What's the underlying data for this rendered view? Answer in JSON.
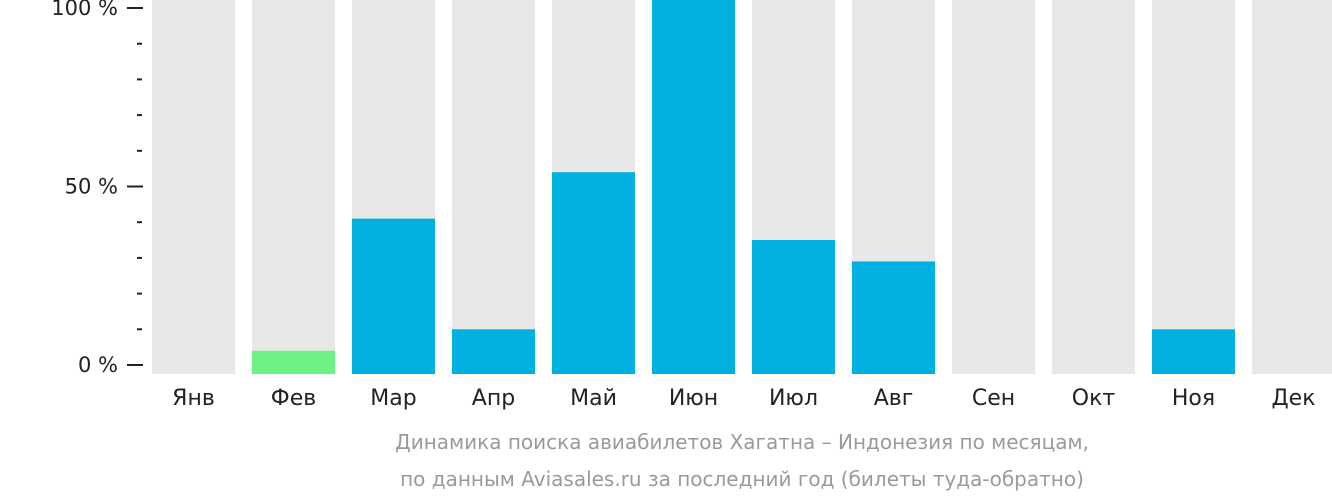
{
  "chart_data": {
    "type": "bar",
    "categories": [
      "Янв",
      "Фев",
      "Мар",
      "Апр",
      "Май",
      "Июн",
      "Июл",
      "Авг",
      "Сен",
      "Окт",
      "Ноя",
      "Дек"
    ],
    "values": [
      0,
      4,
      41,
      10,
      54,
      100,
      35,
      29,
      0,
      0,
      10,
      0
    ],
    "highlight_index": 1,
    "ylim": [
      0,
      100
    ],
    "y_ticks": [
      {
        "value": 0,
        "label": "0 %"
      },
      {
        "value": 50,
        "label": "50 %"
      },
      {
        "value": 100,
        "label": "100 %"
      }
    ],
    "minor_tick_step": 10,
    "grid": false,
    "colors": {
      "bar": "#00b0de",
      "highlight": "#6cf184",
      "track": "#e8e8e8",
      "axis_text": "#222222",
      "caption": "#9a9a9a"
    }
  },
  "caption": {
    "line1": "Динамика поиска авиабилетов Хагатна – Индонезия по месяцам,",
    "line2": "по данным Aviasales.ru за последний год (билеты туда-обратно)"
  }
}
